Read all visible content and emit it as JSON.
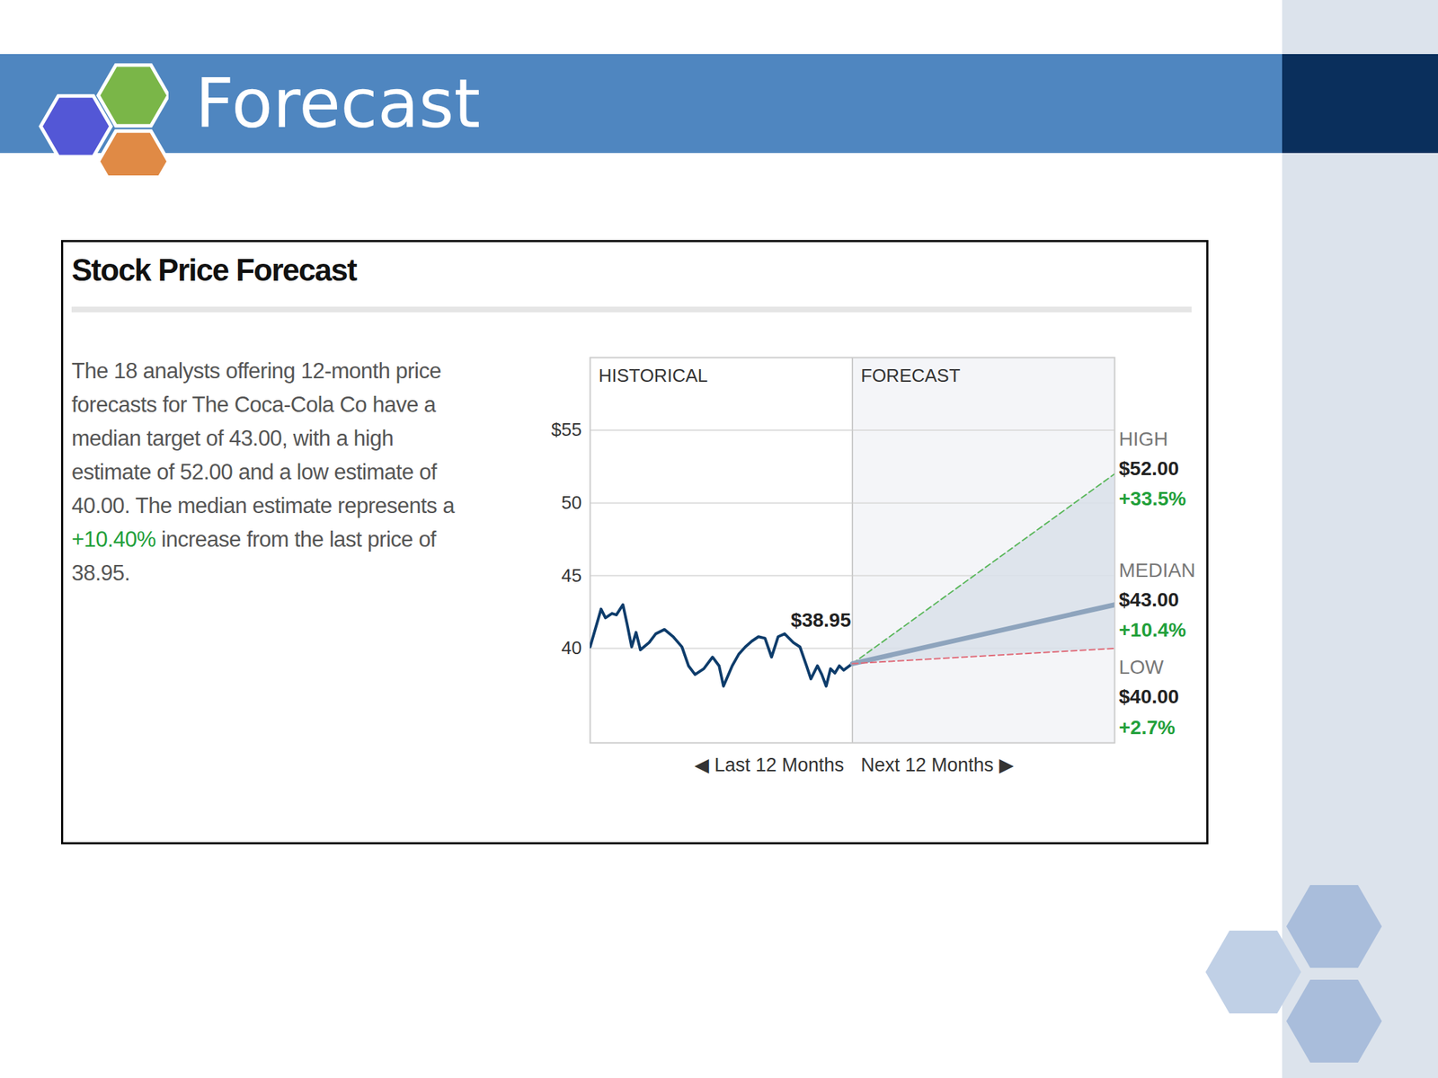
{
  "slide": {
    "title": "Forecast"
  },
  "panel": {
    "title": "Stock Price Forecast",
    "description": [
      {
        "text": "The 18 analysts offering 12-month price forecasts for The Coca-Cola Co have a median target of 43.00, with a high estimate of 52.00 and a low estimate of 40.00. The median estimate represents a "
      },
      {
        "text": "+10.40%",
        "color": "#22a03a"
      },
      {
        "text": " increase from the last price of 38.95."
      }
    ]
  },
  "chart_data": {
    "type": "line",
    "sections": [
      {
        "label": "HISTORICAL",
        "caption": "◀ Last 12 Months",
        "x": [
          -12,
          0
        ]
      },
      {
        "label": "FORECAST",
        "caption": "Next 12 Months ▶",
        "x": [
          0,
          12
        ]
      }
    ],
    "xlim": [
      -12,
      12
    ],
    "ylim": [
      33.5,
      60
    ],
    "yticks": [
      40,
      45,
      50,
      {
        "value": 55,
        "label": "$55"
      }
    ],
    "grid": true,
    "tick_labels": "y",
    "series": [
      {
        "color": "#0d3c6b",
        "x": [
          -12,
          -11.5,
          -11.3,
          -11,
          -10.8,
          -10.5,
          -10.3,
          -10.1,
          -9.9,
          -9.7,
          -9.3,
          -9,
          -8.6,
          -8.2,
          -7.8,
          -7.5,
          -7.2,
          -6.8,
          -6.4,
          -6.1,
          -5.9,
          -5.5,
          -5.2,
          -4.9,
          -4.6,
          -4.3,
          -4,
          -3.7,
          -3.4,
          -3.1,
          -2.7,
          -2.4,
          -2.1,
          -1.9,
          -1.6,
          -1.4,
          -1.2,
          -1,
          -0.8,
          -0.6,
          -0.4,
          0
        ],
        "values": [
          40.1,
          42.7,
          42.1,
          42.4,
          42.3,
          43.0,
          41.6,
          40.1,
          41.1,
          39.9,
          40.4,
          41.0,
          41.3,
          40.8,
          40.1,
          38.8,
          38.2,
          38.6,
          39.4,
          38.8,
          37.4,
          38.8,
          39.6,
          40.1,
          40.5,
          40.8,
          40.7,
          39.4,
          40.8,
          41.0,
          40.4,
          40.1,
          38.8,
          37.9,
          38.8,
          38.2,
          37.4,
          38.6,
          38.3,
          38.8,
          38.5,
          38.95
        ]
      },
      {
        "name": "HIGH",
        "color": "#5cb85c",
        "line_style": "dashed",
        "x": [
          0,
          12
        ],
        "values": [
          38.95,
          52.0
        ],
        "value_labels": [
          null,
          "$52.00"
        ],
        "change_label": "+33.5%"
      },
      {
        "name": "MEDIAN",
        "color": "#8ea4bd",
        "line_style": "solid",
        "x": [
          0,
          12
        ],
        "values": [
          38.95,
          43.0
        ],
        "value_labels": [
          null,
          "$43.00"
        ],
        "change_label": "+10.4%"
      },
      {
        "name": "LOW",
        "color": "#e06a78",
        "line_style": "dashed",
        "x": [
          0,
          12
        ],
        "values": [
          38.95,
          40.0
        ],
        "value_labels": [
          null,
          "$40.00"
        ],
        "change_label": "+2.7%"
      }
    ],
    "annotations": [
      {
        "text": "$38.95",
        "x": 0,
        "y": 38.95
      }
    ]
  }
}
